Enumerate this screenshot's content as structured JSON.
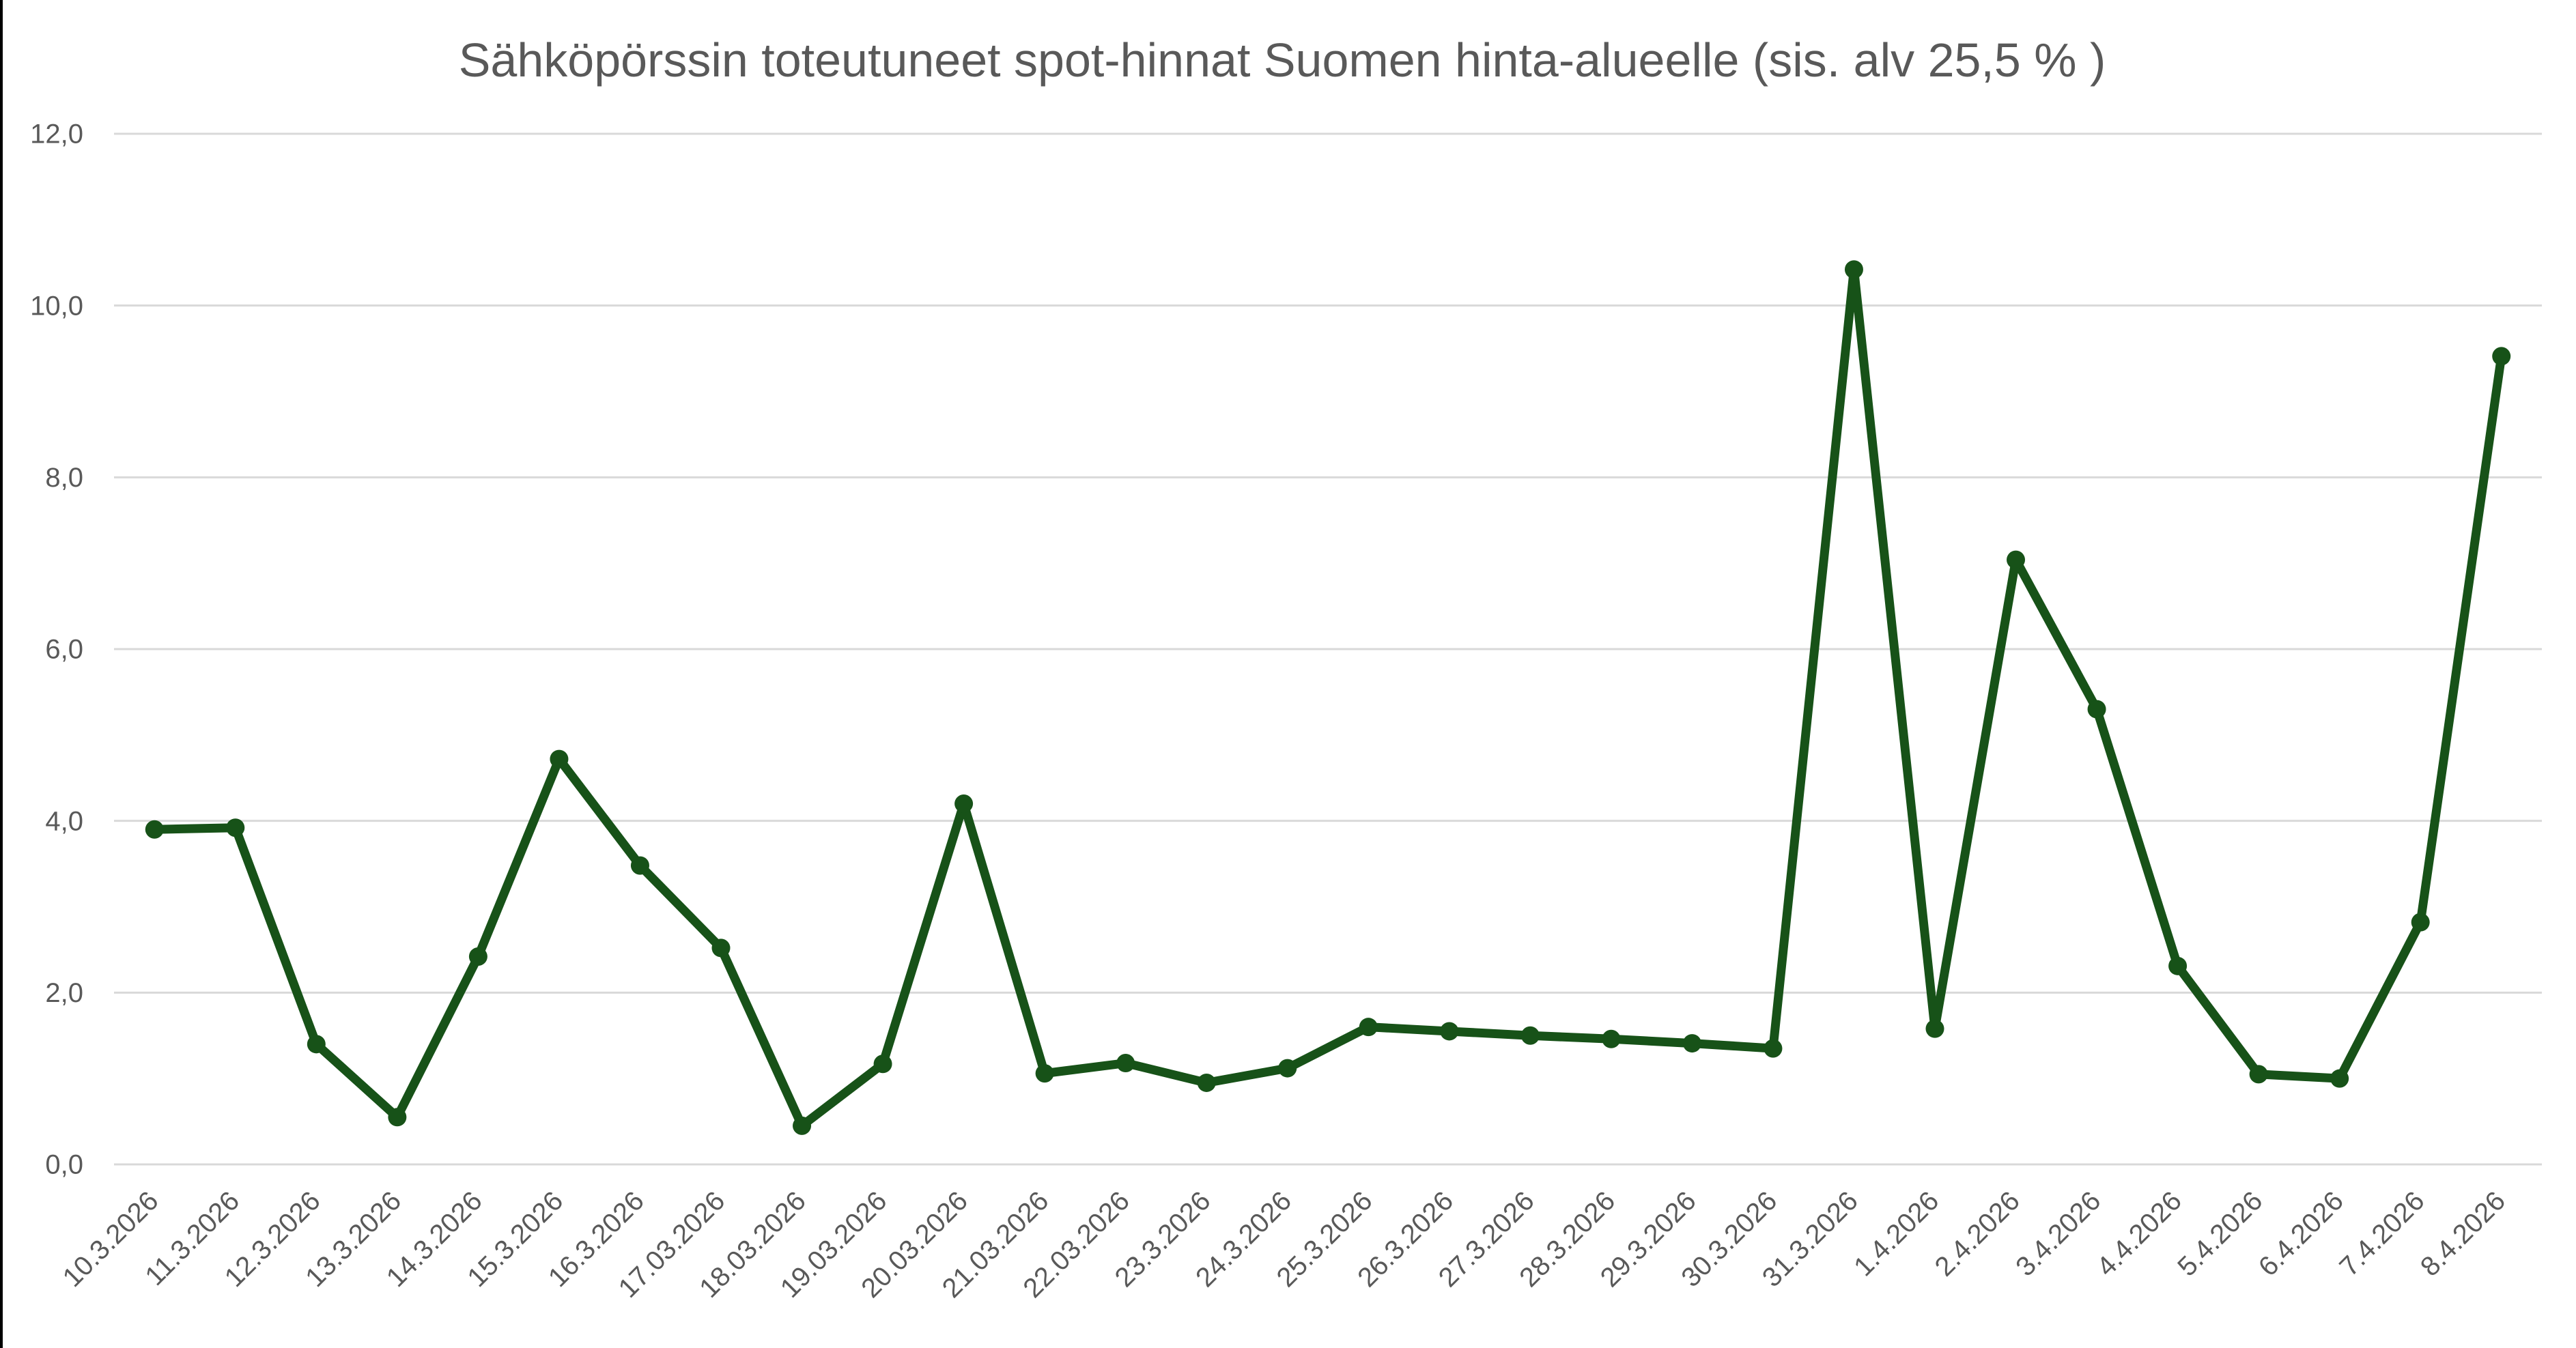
{
  "page": {
    "background_color": "#ffffff",
    "left_border_color": "#000000"
  },
  "chart_data": {
    "type": "line",
    "title": "Sähköpörssin toteutuneet spot-hinnat Suomen hinta-alueelle (sis. alv 25,5 % )",
    "categories": [
      "10.3.2026",
      "11.3.2026",
      "12.3.2026",
      "13.3.2026",
      "14.3.2026",
      "15.3.2026",
      "16.3.2026",
      "17.03.2026",
      "18.03.2026",
      "19.03.2026",
      "20.03.2026",
      "21.03.2026",
      "22.03.2026",
      "23.3.2026",
      "24.3.2026",
      "25.3.2026",
      "26.3.2026",
      "27.3.2026",
      "28.3.2026",
      "29.3.2026",
      "30.3.2026",
      "31.3.2026",
      "1.4.2026",
      "2.4.2026",
      "3.4.2026",
      "4.4.2026",
      "5.4.2026",
      "6.4.2026",
      "7.4.2026",
      "8.4.2026"
    ],
    "values": [
      3.9,
      3.92,
      1.4,
      0.55,
      2.42,
      4.72,
      3.48,
      2.52,
      0.45,
      1.17,
      4.2,
      1.06,
      1.18,
      0.95,
      1.12,
      1.6,
      1.55,
      1.5,
      1.46,
      1.41,
      1.35,
      10.42,
      1.58,
      7.04,
      5.3,
      2.31,
      1.05,
      1.0,
      2.82,
      9.41
    ],
    "xlabel": "",
    "ylabel": "",
    "ylim": [
      0,
      12
    ],
    "y_tick_values": [
      0,
      2,
      4,
      6,
      8,
      10,
      12
    ],
    "y_tick_labels": [
      "0,0",
      "2,0",
      "4,0",
      "6,0",
      "8,0",
      "10,0",
      "12,0"
    ],
    "grid": "horizontal",
    "legend_position": "none",
    "line_color": "#175218",
    "marker": "circle",
    "gridline_color": "#D9D9D9",
    "text_color": "#595959",
    "x_label_rotation_deg": -45
  }
}
